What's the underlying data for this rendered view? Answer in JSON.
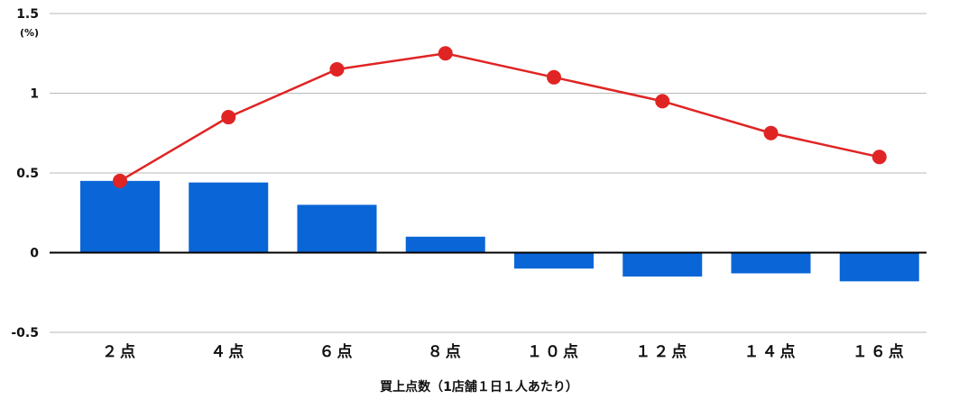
{
  "chart_data": {
    "type": "bar",
    "categories": [
      "２点",
      "４点",
      "６点",
      "８点",
      "１０点",
      "１２点",
      "１４点",
      "１６点"
    ],
    "series": [
      {
        "type": "bar",
        "values": [
          0.45,
          0.44,
          0.3,
          0.1,
          -0.1,
          -0.15,
          -0.13,
          -0.18
        ],
        "color": "#0a66d6"
      },
      {
        "type": "line",
        "values": [
          0.45,
          0.85,
          1.15,
          1.25,
          1.1,
          0.95,
          0.75,
          0.6
        ],
        "color": "#e02424"
      }
    ],
    "xlabel": "買上点数（1店舗１日１人あたり）",
    "ylabel": "",
    "y_unit": "(%)",
    "ylim": [
      -0.5,
      1.5
    ],
    "yticks": [
      "1.5",
      "1",
      "0.5",
      "0",
      "-0.5"
    ],
    "grid": true
  }
}
